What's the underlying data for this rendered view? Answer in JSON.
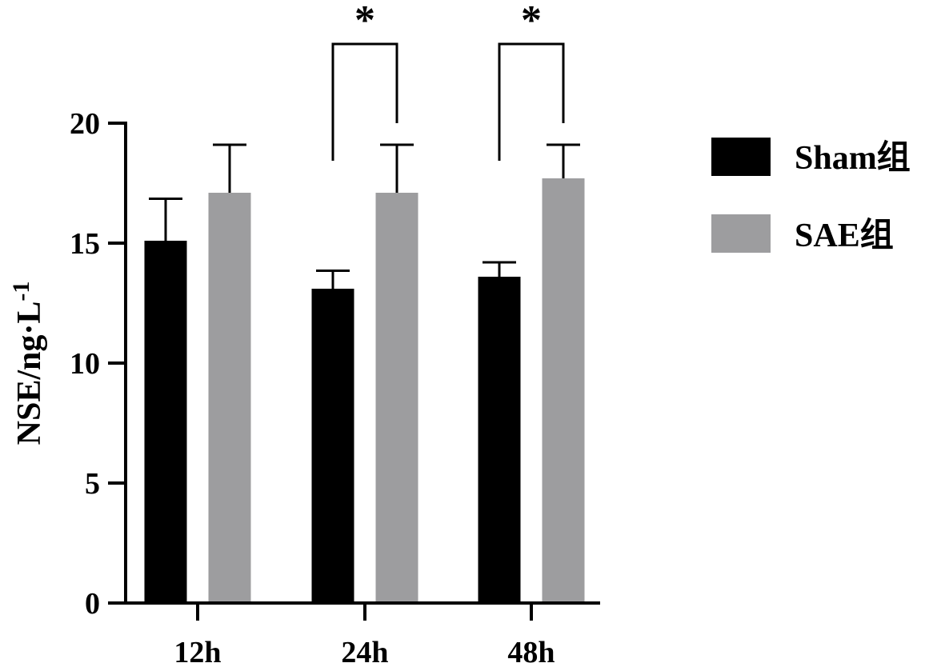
{
  "chart_data": {
    "type": "bar",
    "categories": [
      "12h",
      "24h",
      "48h"
    ],
    "series": [
      {
        "name": "Sham组",
        "color": "#000000",
        "values": [
          15.1,
          13.1,
          13.6
        ],
        "errors": [
          1.75,
          0.75,
          0.6
        ]
      },
      {
        "name": "SAE组",
        "color": "#9d9d9f",
        "values": [
          17.1,
          17.1,
          17.7
        ],
        "errors": [
          2.0,
          2.0,
          1.4
        ]
      }
    ],
    "ylabel": {
      "base": "NSE/ng·L",
      "superscript": "-1"
    },
    "ylim": [
      0,
      20
    ],
    "yticks": [
      "0",
      "5",
      "10",
      "15",
      "20"
    ],
    "grid": false,
    "legend_position": "right",
    "significance": [
      {
        "category": "24h",
        "label": "*"
      },
      {
        "category": "48h",
        "label": "*"
      }
    ]
  }
}
